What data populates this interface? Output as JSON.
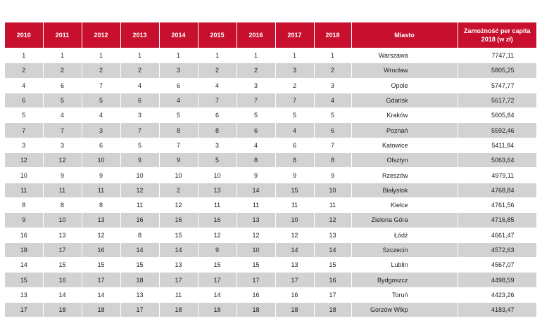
{
  "table": {
    "header": [
      "2010",
      "2011",
      "2012",
      "2013",
      "2014",
      "2015",
      "2016",
      "2017",
      "2018",
      "Miasto",
      "Zamożność per capita 2018 (w zł)"
    ],
    "rows": [
      [
        1,
        1,
        1,
        1,
        1,
        1,
        1,
        1,
        1,
        "Warszawa",
        "7747,11"
      ],
      [
        2,
        2,
        2,
        2,
        3,
        2,
        2,
        3,
        2,
        "Wrocław",
        "5805,25"
      ],
      [
        4,
        6,
        7,
        4,
        6,
        4,
        3,
        2,
        3,
        "Opole",
        "5747,77"
      ],
      [
        6,
        5,
        5,
        6,
        4,
        7,
        7,
        7,
        4,
        "Gdańsk",
        "5617,72"
      ],
      [
        5,
        4,
        4,
        3,
        5,
        6,
        5,
        5,
        5,
        "Kraków",
        "5605,84"
      ],
      [
        7,
        7,
        3,
        7,
        8,
        8,
        6,
        4,
        6,
        "Poznań",
        "5592,46"
      ],
      [
        3,
        3,
        6,
        5,
        7,
        3,
        4,
        6,
        7,
        "Katowice",
        "5411,84"
      ],
      [
        12,
        12,
        10,
        9,
        9,
        5,
        8,
        8,
        8,
        "Olsztyn",
        "5063,64"
      ],
      [
        10,
        9,
        9,
        10,
        10,
        10,
        9,
        9,
        9,
        "Rzeszów",
        "4979,11"
      ],
      [
        11,
        11,
        11,
        12,
        2,
        13,
        14,
        15,
        10,
        "Białystok",
        "4768,84"
      ],
      [
        8,
        8,
        8,
        11,
        12,
        11,
        11,
        11,
        11,
        "Kielce",
        "4761,56"
      ],
      [
        9,
        10,
        13,
        16,
        16,
        16,
        13,
        10,
        12,
        "Zielona Góra",
        "4716,85"
      ],
      [
        16,
        13,
        12,
        8,
        15,
        12,
        12,
        12,
        13,
        "Łódź",
        "4661,47"
      ],
      [
        18,
        17,
        16,
        14,
        14,
        9,
        10,
        14,
        14,
        "Szczecin",
        "4572,63"
      ],
      [
        14,
        15,
        15,
        15,
        13,
        15,
        15,
        13,
        15,
        "Lublin",
        "4567,07"
      ],
      [
        15,
        16,
        17,
        18,
        17,
        17,
        17,
        17,
        16,
        "Bydgoszcz",
        "4498,59"
      ],
      [
        13,
        14,
        14,
        13,
        11,
        14,
        16,
        16,
        17,
        "Toruń",
        "4423,26"
      ],
      [
        17,
        18,
        18,
        17,
        18,
        18,
        18,
        18,
        18,
        "Gorzów Wlkp",
        "4183,47"
      ]
    ]
  }
}
